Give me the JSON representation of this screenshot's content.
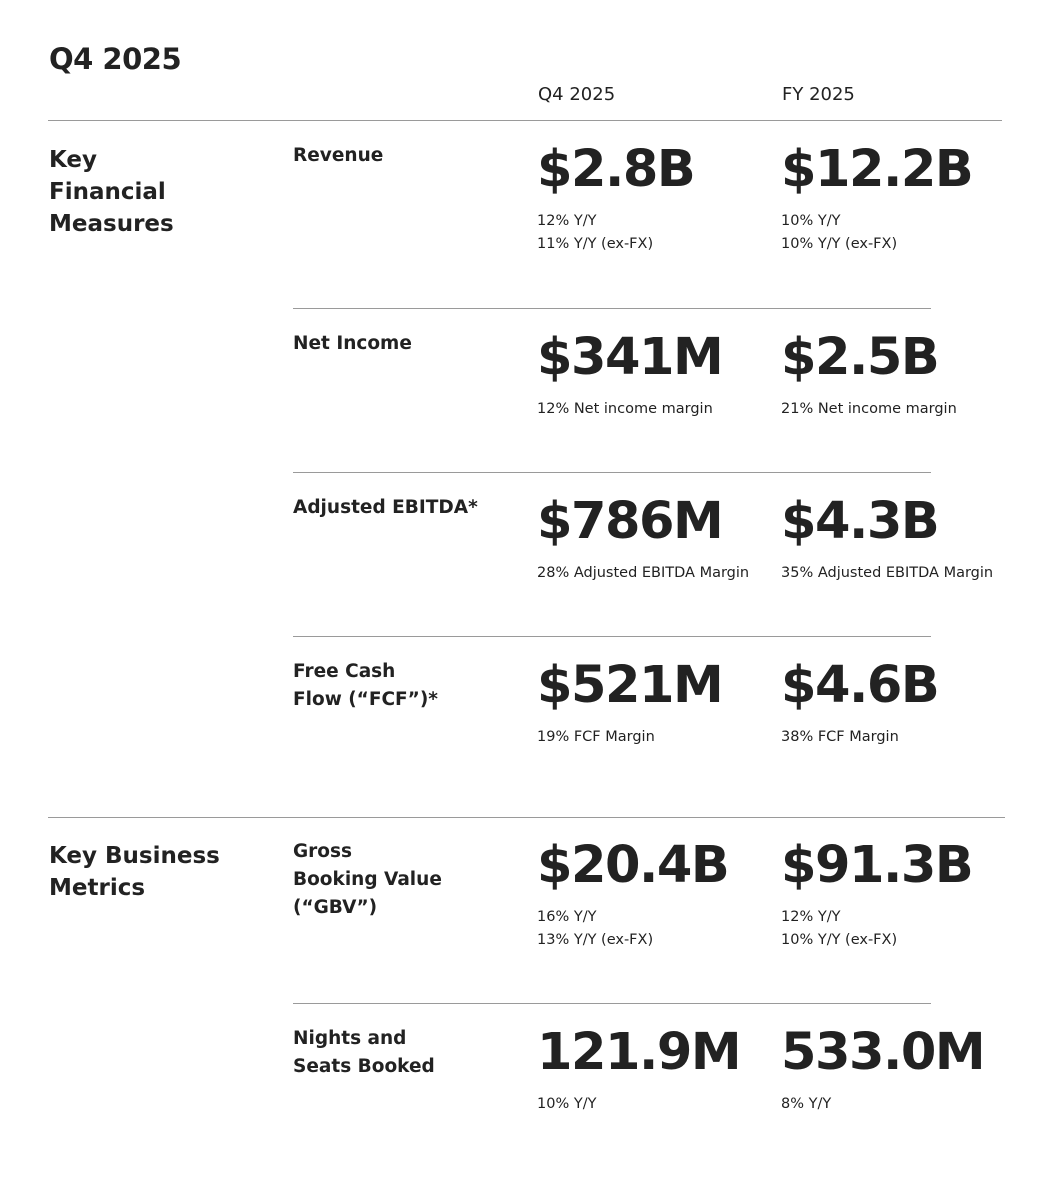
{
  "title": "Q4 2025",
  "columns": {
    "q4": "Q4 2025",
    "fy": "FY 2025"
  },
  "sections": [
    {
      "label": "Key Financial Measures",
      "metrics": [
        {
          "label": "Revenue",
          "q4": {
            "value": "$2.8B",
            "sub": [
              "12% Y/Y",
              "11% Y/Y (ex-FX)"
            ]
          },
          "fy": {
            "value": "$12.2B",
            "sub": [
              "10% Y/Y",
              "10% Y/Y (ex-FX)"
            ]
          }
        },
        {
          "label": "Net Income",
          "q4": {
            "value": "$341M",
            "sub": [
              "12% Net income margin"
            ]
          },
          "fy": {
            "value": "$2.5B",
            "sub": [
              "21% Net income margin"
            ]
          }
        },
        {
          "label": "Adjusted EBITDA*",
          "q4": {
            "value": "$786M",
            "sub": [
              "28% Adjusted EBITDA Margin"
            ]
          },
          "fy": {
            "value": "$4.3B",
            "sub": [
              "35% Adjusted EBITDA Margin"
            ]
          }
        },
        {
          "label": "Free Cash Flow (“FCF”)*",
          "q4": {
            "value": "$521M",
            "sub": [
              "19% FCF Margin"
            ]
          },
          "fy": {
            "value": "$4.6B",
            "sub": [
              "38% FCF Margin"
            ]
          }
        }
      ]
    },
    {
      "label": "Key Business Metrics",
      "metrics": [
        {
          "label": "Gross Booking Value (“GBV”)",
          "q4": {
            "value": "$20.4B",
            "sub": [
              "16% Y/Y",
              "13% Y/Y (ex-FX)"
            ]
          },
          "fy": {
            "value": "$91.3B",
            "sub": [
              "12% Y/Y",
              "10% Y/Y (ex-FX)"
            ]
          }
        },
        {
          "label": "Nights and Seats Booked",
          "q4": {
            "value": "121.9M",
            "sub": [
              "10% Y/Y"
            ]
          },
          "fy": {
            "value": "533.0M",
            "sub": [
              "8% Y/Y"
            ]
          }
        }
      ]
    }
  ]
}
